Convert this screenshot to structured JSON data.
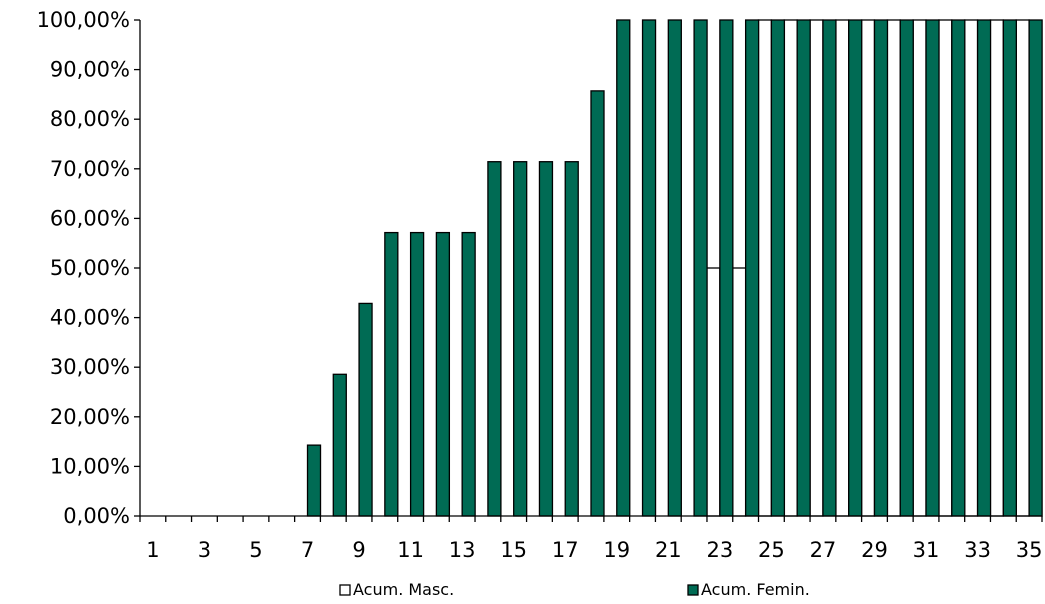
{
  "chart_data": {
    "type": "bar",
    "title": "",
    "xlabel": "",
    "ylabel": "",
    "ylim": [
      0,
      100
    ],
    "y_ticks": [
      "0,00%",
      "10,00%",
      "20,00%",
      "30,00%",
      "40,00%",
      "50,00%",
      "60,00%",
      "70,00%",
      "80,00%",
      "90,00%",
      "100,00%"
    ],
    "categories": [
      1,
      2,
      3,
      4,
      5,
      6,
      7,
      8,
      9,
      10,
      11,
      12,
      13,
      14,
      15,
      16,
      17,
      18,
      19,
      20,
      21,
      22,
      23,
      24,
      25,
      26,
      27,
      28,
      29,
      30,
      31,
      32,
      33,
      34,
      35
    ],
    "x_tick_labels": [
      "1",
      "3",
      "5",
      "7",
      "9",
      "11",
      "13",
      "15",
      "17",
      "19",
      "21",
      "23",
      "25",
      "27",
      "29",
      "31",
      "33",
      "35"
    ],
    "grid": false,
    "legend_position": "bottom",
    "series": [
      {
        "name": "Acum. Masc.",
        "color": "#ffffff",
        "values": [
          0,
          0,
          0,
          0,
          0,
          0,
          0,
          0,
          0,
          0,
          0,
          0,
          0,
          0,
          0,
          0,
          0,
          0,
          0,
          0,
          0,
          0,
          50,
          50,
          100,
          100,
          100,
          100,
          100,
          100,
          100,
          100,
          100,
          100,
          100
        ]
      },
      {
        "name": "Acum. Femin.",
        "color": "#006b54",
        "values": [
          0,
          0,
          0,
          0,
          0,
          0,
          14.29,
          28.57,
          42.86,
          57.14,
          57.14,
          57.14,
          57.14,
          71.43,
          71.43,
          71.43,
          71.43,
          85.71,
          100,
          100,
          100,
          100,
          100,
          100,
          100,
          100,
          100,
          100,
          100,
          100,
          100,
          100,
          100,
          100,
          100
        ]
      }
    ]
  }
}
